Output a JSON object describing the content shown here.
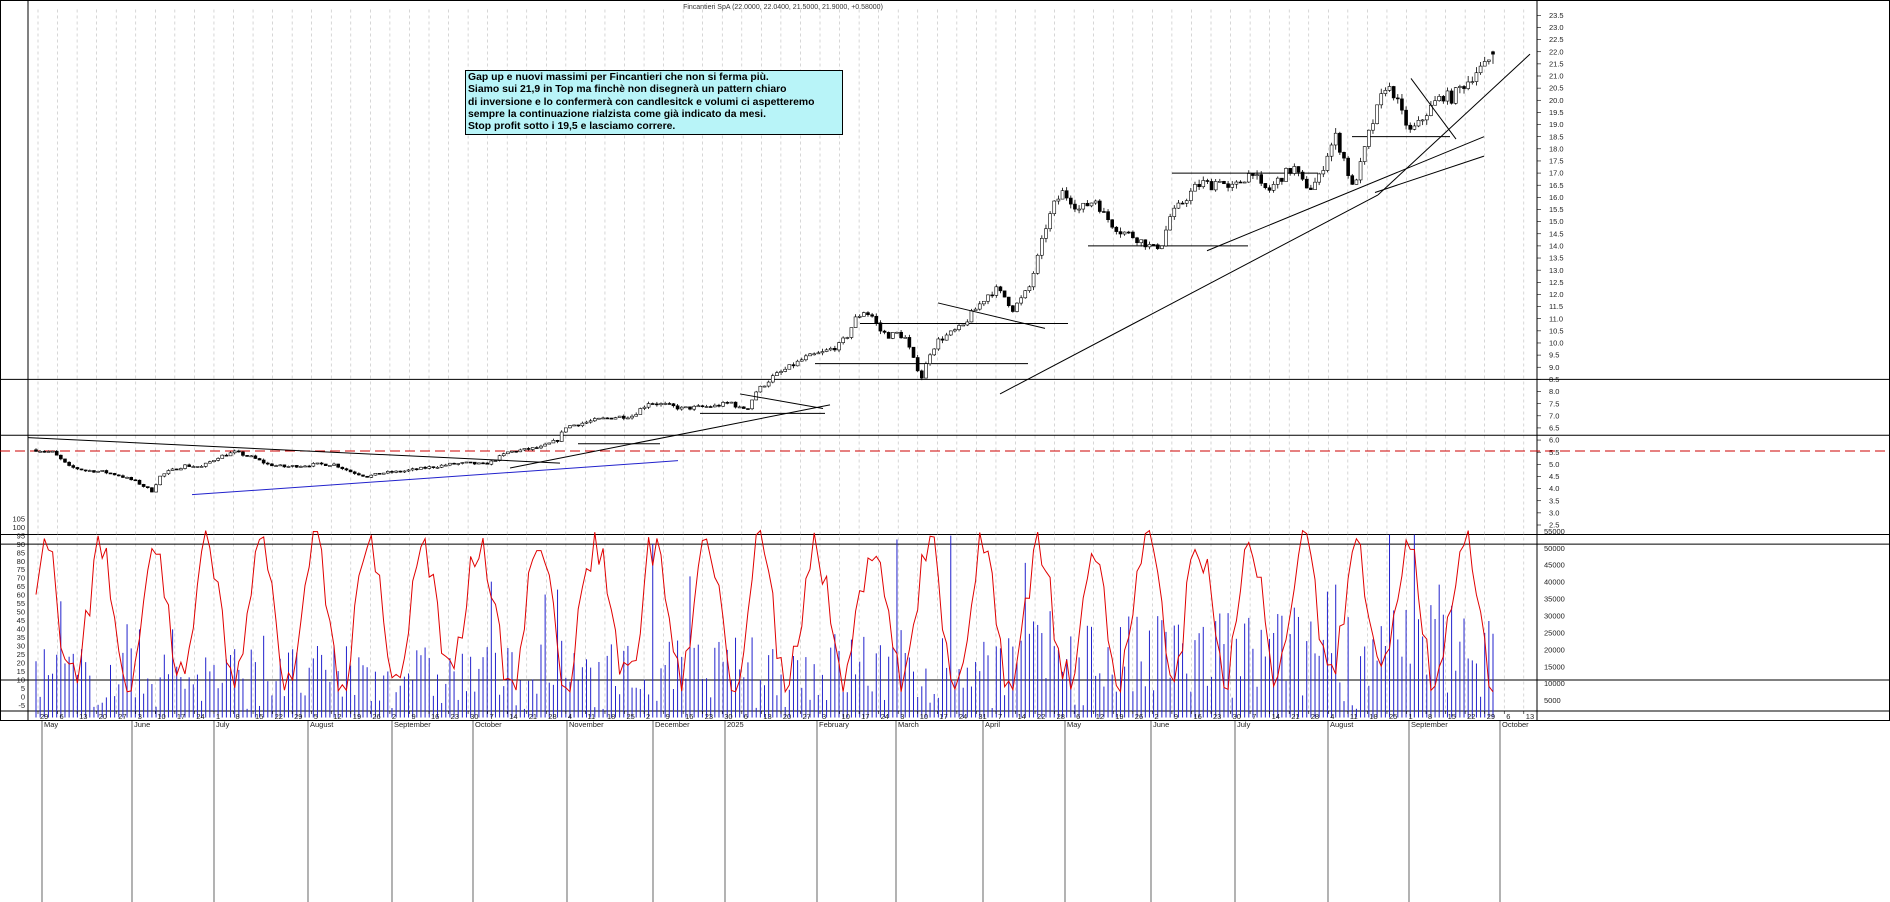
{
  "chart_title": "Fincantieri SpA (22.0000, 22.0400, 21.5000, 21.9000, +0.58000)",
  "annotation": {
    "lines": [
      "Gap up e nuovi massimi per Fincantieri che non si ferma più.",
      "Siamo sui 21,9 in Top ma finchè non disegnerà un pattern chiaro",
      "di inversione e lo confermerà con candlesitck e volumi ci aspetteremo",
      "sempre la continuazione rialzista come già indicato da mesi.",
      "Stop profit sotto i 19,5 e lasciamo correre."
    ]
  },
  "colors": {
    "candles": "#000000",
    "grid": "#bbbbbb",
    "support_line": "#000000",
    "dashed_level": "#cc0000",
    "blue_trendline": "#2222cc",
    "volume_bars": "#2222cc",
    "oscillator_line": "#e00000",
    "note_background": "#b8f4f8"
  },
  "chart_data": [
    {
      "type": "candlestick",
      "title": "Fincantieri SpA (22.0000, 22.0400, 21.5000, 21.9000, +0.58000)",
      "y_axis_side": "right",
      "ylim": [
        2.0,
        23.5
      ],
      "y_ticks": [
        "2.5",
        "3.0",
        "3.5",
        "4.0",
        "4.5",
        "5.0",
        "5.5",
        "6.0",
        "6.5",
        "7.0",
        "7.5",
        "8.0",
        "8.5",
        "9.0",
        "9.5",
        "10.0",
        "10.5",
        "11.0",
        "11.5",
        "12.0",
        "12.5",
        "13.0",
        "13.5",
        "14.0",
        "14.5",
        "15.0",
        "15.5",
        "16.0",
        "16.5",
        "17.0",
        "17.5",
        "18.0",
        "18.5",
        "19.0",
        "19.5",
        "20.0",
        "20.5",
        "21.0",
        "21.5",
        "22.0",
        "22.5",
        "23.0",
        "23.5"
      ],
      "last_bar": {
        "open": 22.0,
        "high": 22.04,
        "low": 21.5,
        "close": 21.9,
        "change": 0.58
      },
      "price_path": [
        [
          0,
          5.6
        ],
        [
          4,
          5.5
        ],
        [
          8,
          4.9
        ],
        [
          12,
          4.75
        ],
        [
          16,
          4.7
        ],
        [
          20,
          4.55
        ],
        [
          24,
          4.3
        ],
        [
          28,
          3.9
        ],
        [
          30,
          4.5
        ],
        [
          32,
          4.7
        ],
        [
          36,
          4.95
        ],
        [
          40,
          4.9
        ],
        [
          44,
          5.3
        ],
        [
          48,
          5.5
        ],
        [
          52,
          5.3
        ],
        [
          56,
          5.0
        ],
        [
          60,
          4.9
        ],
        [
          64,
          4.95
        ],
        [
          68,
          5.0
        ],
        [
          72,
          5.0
        ],
        [
          76,
          4.7
        ],
        [
          80,
          4.5
        ],
        [
          84,
          4.65
        ],
        [
          88,
          4.7
        ],
        [
          92,
          4.8
        ],
        [
          96,
          4.9
        ],
        [
          100,
          5.0
        ],
        [
          104,
          5.05
        ],
        [
          108,
          5.0
        ],
        [
          110,
          5.1
        ],
        [
          114,
          5.5
        ],
        [
          118,
          5.6
        ],
        [
          122,
          5.7
        ],
        [
          126,
          6.0
        ],
        [
          128,
          6.55
        ],
        [
          132,
          6.7
        ],
        [
          136,
          6.85
        ],
        [
          140,
          6.95
        ],
        [
          144,
          7.0
        ],
        [
          148,
          7.55
        ],
        [
          152,
          7.45
        ],
        [
          156,
          7.3
        ],
        [
          160,
          7.35
        ],
        [
          164,
          7.4
        ],
        [
          168,
          7.55
        ],
        [
          170,
          7.3
        ],
        [
          172,
          7.35
        ],
        [
          174,
          8.0
        ],
        [
          178,
          8.6
        ],
        [
          182,
          9.0
        ],
        [
          186,
          9.4
        ],
        [
          190,
          9.6
        ],
        [
          194,
          9.9
        ],
        [
          196,
          10.3
        ],
        [
          198,
          11.0
        ],
        [
          200,
          11.3
        ],
        [
          202,
          11.1
        ],
        [
          204,
          10.5
        ],
        [
          206,
          10.3
        ],
        [
          208,
          10.4
        ],
        [
          210,
          10.2
        ],
        [
          212,
          9.3
        ],
        [
          214,
          8.6
        ],
        [
          216,
          9.6
        ],
        [
          218,
          10.1
        ],
        [
          220,
          10.3
        ],
        [
          222,
          10.5
        ],
        [
          224,
          10.7
        ],
        [
          226,
          11.2
        ],
        [
          228,
          11.6
        ],
        [
          230,
          12.0
        ],
        [
          232,
          12.2
        ],
        [
          234,
          11.9
        ],
        [
          236,
          11.4
        ],
        [
          238,
          11.8
        ],
        [
          240,
          12.3
        ],
        [
          242,
          13.5
        ],
        [
          244,
          14.8
        ],
        [
          246,
          15.7
        ],
        [
          248,
          16.2
        ],
        [
          250,
          15.9
        ],
        [
          252,
          15.5
        ],
        [
          254,
          15.7
        ],
        [
          256,
          15.9
        ],
        [
          258,
          15.3
        ],
        [
          260,
          14.9
        ],
        [
          262,
          14.6
        ],
        [
          264,
          14.5
        ],
        [
          266,
          14.3
        ],
        [
          268,
          14.1
        ],
        [
          270,
          13.9
        ],
        [
          272,
          14.1
        ],
        [
          274,
          15.2
        ],
        [
          276,
          15.6
        ],
        [
          278,
          16.0
        ],
        [
          280,
          16.4
        ],
        [
          282,
          16.6
        ],
        [
          284,
          16.5
        ],
        [
          286,
          16.8
        ],
        [
          288,
          16.3
        ],
        [
          290,
          16.5
        ],
        [
          292,
          16.8
        ],
        [
          294,
          17.1
        ],
        [
          296,
          16.4
        ],
        [
          298,
          16.3
        ],
        [
          300,
          16.7
        ],
        [
          302,
          17.0
        ],
        [
          304,
          17.2
        ],
        [
          306,
          16.6
        ],
        [
          308,
          16.4
        ],
        [
          310,
          16.8
        ],
        [
          312,
          17.8
        ],
        [
          314,
          18.5
        ],
        [
          316,
          17.6
        ],
        [
          318,
          16.4
        ],
        [
          320,
          17.3
        ],
        [
          322,
          18.6
        ],
        [
          324,
          19.6
        ],
        [
          326,
          20.6
        ],
        [
          328,
          20.3
        ],
        [
          330,
          19.4
        ],
        [
          332,
          18.7
        ],
        [
          334,
          19.0
        ],
        [
          336,
          19.5
        ],
        [
          338,
          19.9
        ],
        [
          340,
          20.2
        ],
        [
          342,
          20.1
        ],
        [
          344,
          20.5
        ],
        [
          346,
          20.8
        ],
        [
          348,
          21.2
        ],
        [
          350,
          21.4
        ],
        [
          352,
          21.9
        ]
      ]
    },
    {
      "type": "bar+line",
      "series": [
        {
          "kind": "volume_bars",
          "axis": "right",
          "ylim": [
            0,
            55000
          ]
        },
        {
          "kind": "oscillator_line",
          "axis": "left",
          "ylim": [
            -5,
            110
          ]
        }
      ],
      "left_ticks": [
        "-5",
        "0",
        "5",
        "10",
        "15",
        "20",
        "25",
        "30",
        "35",
        "40",
        "45",
        "50",
        "55",
        "60",
        "65",
        "70",
        "75",
        "80",
        "85",
        "90",
        "95",
        "100",
        "105"
      ],
      "right_ticks": [
        "5000",
        "10000",
        "15000",
        "20000",
        "25000",
        "30000",
        "35000",
        "40000",
        "45000",
        "50000",
        "55000"
      ],
      "reference_levels": [
        10,
        90
      ]
    }
  ],
  "x_axis": {
    "day_labels": [
      "29",
      "6",
      "13",
      "20",
      "27",
      "3",
      "10",
      "17",
      "24",
      "1",
      "8",
      "15",
      "22",
      "29",
      "5",
      "12",
      "19",
      "26",
      "2",
      "9",
      "16",
      "23",
      "30",
      "7",
      "14",
      "21",
      "28",
      "4",
      "11",
      "18",
      "25",
      "2",
      "9",
      "16",
      "23",
      "30",
      "6",
      "13",
      "20",
      "27",
      "3",
      "10",
      "17",
      "24",
      "3",
      "10",
      "17",
      "24",
      "31",
      "7",
      "14",
      "22",
      "28",
      "6",
      "12",
      "19",
      "26",
      "2",
      "9",
      "16",
      "23",
      "30",
      "7",
      "14",
      "21",
      "28",
      "4",
      "11",
      "18",
      "25",
      "1",
      "8",
      "15",
      "22",
      "29",
      "6",
      "13"
    ],
    "month_labels": [
      "May",
      "June",
      "July",
      "August",
      "September",
      "October",
      "November",
      "December",
      "2025",
      "February",
      "March",
      "April",
      "May",
      "June",
      "July",
      "August",
      "September",
      "October"
    ]
  }
}
